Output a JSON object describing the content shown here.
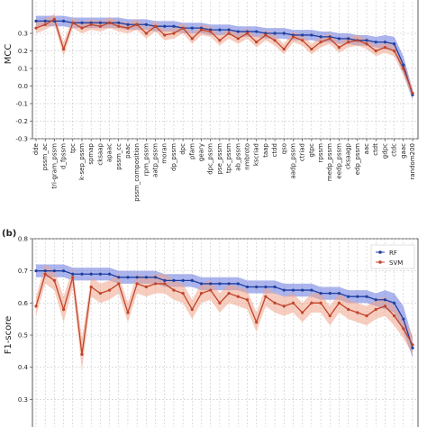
{
  "chart_data": [
    {
      "panel": "(a)",
      "type": "line",
      "ylabel": "MCC",
      "ylim": [
        -0.3,
        0.5
      ],
      "yticks": [
        -0.3,
        -0.2,
        -0.1,
        0.0,
        0.1,
        0.2,
        0.3
      ],
      "ytick_labels": [
        "-0.3",
        "-0.2",
        "-0.1",
        "0.0",
        "0.1",
        "0.2",
        "0.3"
      ],
      "grid": true,
      "categories": [
        "dde",
        "pssm_ac",
        "tri-gram_pssm",
        "d_fpssm",
        "tpc",
        "k-sep_pssm",
        "spmap",
        "cksaap",
        "apaac",
        "pssm_cc",
        "paac",
        "pssm_composition",
        "rpm_pssm",
        "aatp_pssm",
        "moran",
        "dp_pssm",
        "dpc",
        "pfam",
        "geary",
        "dpc_pssm",
        "pse_pssm",
        "tpc_pssm",
        "ab_pssm",
        "nmbroto",
        "kscriad",
        "taap",
        "ctdd",
        "qso",
        "aadp_pssm",
        "ctriad",
        "gtpc",
        "rpssm",
        "medp_pssm",
        "eedp_pssm",
        "cksaagp",
        "edp_pssm",
        "aac",
        "ctdt",
        "gdpc",
        "ctdc",
        "gaac",
        "random200"
      ],
      "series": [
        {
          "name": "RF",
          "color": "#1f3fa0",
          "band_color": "#6677dd",
          "values": [
            0.37,
            0.37,
            0.37,
            0.37,
            0.36,
            0.36,
            0.36,
            0.36,
            0.36,
            0.36,
            0.35,
            0.35,
            0.35,
            0.34,
            0.34,
            0.34,
            0.33,
            0.33,
            0.33,
            0.32,
            0.32,
            0.32,
            0.31,
            0.31,
            0.31,
            0.3,
            0.3,
            0.3,
            0.29,
            0.29,
            0.29,
            0.28,
            0.28,
            0.27,
            0.27,
            0.26,
            0.26,
            0.25,
            0.25,
            0.24,
            0.12,
            -0.05
          ],
          "band": [
            0.03,
            0.03,
            0.03,
            0.03,
            0.03,
            0.03,
            0.03,
            0.03,
            0.03,
            0.03,
            0.03,
            0.03,
            0.03,
            0.03,
            0.03,
            0.03,
            0.03,
            0.03,
            0.03,
            0.03,
            0.03,
            0.03,
            0.03,
            0.03,
            0.03,
            0.03,
            0.03,
            0.03,
            0.03,
            0.03,
            0.03,
            0.03,
            0.03,
            0.03,
            0.03,
            0.03,
            0.03,
            0.03,
            0.04,
            0.04,
            0.05,
            0.03
          ]
        },
        {
          "name": "SVM",
          "color": "#c0442a",
          "band_color": "#f0a48a",
          "values": [
            0.33,
            0.35,
            0.38,
            0.21,
            0.36,
            0.33,
            0.35,
            0.34,
            0.36,
            0.34,
            0.33,
            0.35,
            0.3,
            0.34,
            0.29,
            0.3,
            0.33,
            0.27,
            0.32,
            0.31,
            0.26,
            0.3,
            0.27,
            0.3,
            0.25,
            0.29,
            0.26,
            0.21,
            0.28,
            0.26,
            0.21,
            0.25,
            0.27,
            0.22,
            0.25,
            0.26,
            0.24,
            0.2,
            0.22,
            0.2,
            0.1,
            -0.04
          ],
          "band": [
            0.03,
            0.03,
            0.03,
            0.04,
            0.03,
            0.03,
            0.03,
            0.03,
            0.03,
            0.03,
            0.03,
            0.03,
            0.03,
            0.03,
            0.03,
            0.03,
            0.03,
            0.03,
            0.03,
            0.03,
            0.03,
            0.03,
            0.03,
            0.03,
            0.03,
            0.03,
            0.03,
            0.03,
            0.03,
            0.03,
            0.03,
            0.03,
            0.03,
            0.03,
            0.03,
            0.03,
            0.03,
            0.03,
            0.03,
            0.03,
            0.04,
            0.03
          ]
        }
      ]
    },
    {
      "panel": "(b)",
      "type": "line",
      "ylabel": "F1-score",
      "ylim": [
        0.2,
        0.8
      ],
      "yticks": [
        0.3,
        0.4,
        0.5,
        0.6,
        0.7,
        0.8
      ],
      "ytick_labels": [
        "0.3",
        "0.4",
        "0.5",
        "0.6",
        "0.7",
        "0.8"
      ],
      "grid": true,
      "legend_position": "top-right",
      "series": [
        {
          "name": "RF",
          "color": "#1f3fa0",
          "band_color": "#6677dd",
          "values": [
            0.7,
            0.7,
            0.7,
            0.7,
            0.69,
            0.69,
            0.69,
            0.69,
            0.69,
            0.68,
            0.68,
            0.68,
            0.68,
            0.68,
            0.67,
            0.67,
            0.67,
            0.67,
            0.66,
            0.66,
            0.66,
            0.66,
            0.66,
            0.65,
            0.65,
            0.65,
            0.65,
            0.64,
            0.64,
            0.64,
            0.64,
            0.63,
            0.63,
            0.63,
            0.62,
            0.62,
            0.62,
            0.61,
            0.61,
            0.6,
            0.55,
            0.46
          ],
          "band": [
            0.02,
            0.02,
            0.02,
            0.02,
            0.02,
            0.02,
            0.02,
            0.02,
            0.02,
            0.02,
            0.02,
            0.02,
            0.02,
            0.02,
            0.02,
            0.02,
            0.02,
            0.02,
            0.02,
            0.02,
            0.02,
            0.02,
            0.02,
            0.02,
            0.02,
            0.02,
            0.02,
            0.02,
            0.02,
            0.02,
            0.02,
            0.02,
            0.02,
            0.02,
            0.02,
            0.02,
            0.02,
            0.02,
            0.03,
            0.03,
            0.04,
            0.03
          ]
        },
        {
          "name": "SVM",
          "color": "#c0442a",
          "band_color": "#f0a48a",
          "values": [
            0.59,
            0.69,
            0.67,
            0.58,
            0.68,
            0.44,
            0.65,
            0.63,
            0.64,
            0.66,
            0.57,
            0.66,
            0.65,
            0.66,
            0.66,
            0.64,
            0.63,
            0.58,
            0.63,
            0.64,
            0.6,
            0.63,
            0.62,
            0.61,
            0.54,
            0.62,
            0.6,
            0.59,
            0.6,
            0.57,
            0.6,
            0.6,
            0.56,
            0.6,
            0.58,
            0.57,
            0.56,
            0.58,
            0.59,
            0.56,
            0.52,
            0.47
          ],
          "band": [
            0.03,
            0.03,
            0.03,
            0.04,
            0.03,
            0.05,
            0.03,
            0.03,
            0.03,
            0.03,
            0.03,
            0.03,
            0.03,
            0.03,
            0.03,
            0.03,
            0.03,
            0.03,
            0.03,
            0.03,
            0.03,
            0.03,
            0.03,
            0.03,
            0.03,
            0.03,
            0.03,
            0.03,
            0.03,
            0.03,
            0.03,
            0.03,
            0.03,
            0.03,
            0.03,
            0.03,
            0.03,
            0.03,
            0.03,
            0.03,
            0.03,
            0.03
          ]
        }
      ]
    }
  ]
}
